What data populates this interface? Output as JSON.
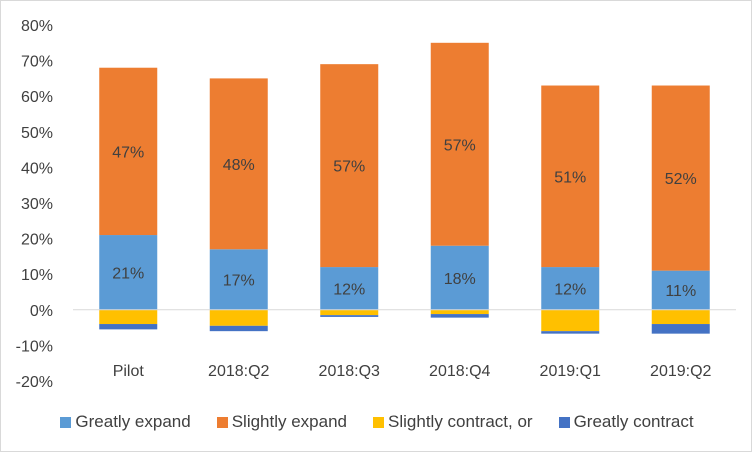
{
  "chart_data": {
    "type": "bar",
    "stacked": true,
    "categories": [
      "Pilot",
      "2018:Q2",
      "2018:Q3",
      "2018:Q4",
      "2019:Q1",
      "2019:Q2"
    ],
    "series": [
      {
        "name": "Greatly expand",
        "color": "#5B9BD5",
        "values": [
          21,
          17,
          12,
          18,
          12,
          11
        ],
        "labels": [
          "21%",
          "17%",
          "12%",
          "18%",
          "12%",
          "11%"
        ]
      },
      {
        "name": "Slightly expand",
        "color": "#ED7D31",
        "values": [
          47,
          48,
          57,
          57,
          51,
          52
        ],
        "labels": [
          "47%",
          "48%",
          "57%",
          "57%",
          "51%",
          "52%"
        ]
      },
      {
        "name": "Slightly contract, or",
        "color": "#FFC000",
        "values": [
          -4,
          -4.5,
          -1.5,
          -1.2,
          -6,
          -4
        ]
      },
      {
        "name": "Greatly contract",
        "color": "#4472C4",
        "values": [
          -1.5,
          -1.5,
          -0.5,
          -1,
          -0.7,
          -2.7
        ]
      }
    ],
    "ylim": [
      -20,
      80
    ],
    "yticks": [
      -20,
      -10,
      0,
      10,
      20,
      30,
      40,
      50,
      60,
      70,
      80
    ],
    "ytick_labels": [
      "-20%",
      "-10%",
      "0%",
      "10%",
      "20%",
      "30%",
      "40%",
      "50%",
      "60%",
      "70%",
      "80%"
    ],
    "grid": false,
    "legend_position": "bottom"
  }
}
